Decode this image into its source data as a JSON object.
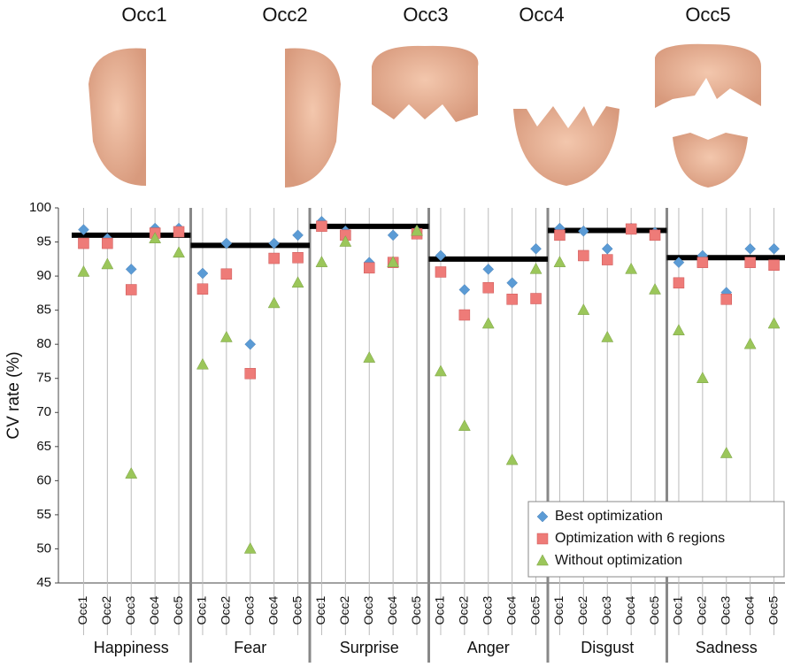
{
  "chart_data": {
    "type": "scatter",
    "y_label": "CV rate (%)",
    "occlusion_labels": [
      "Occ1",
      "Occ2",
      "Occ3",
      "Occ4",
      "Occ5"
    ],
    "groups": [
      "Happiness",
      "Fear",
      "Surprise",
      "Anger",
      "Disgust",
      "Sadness"
    ],
    "categories": [
      "Occ1",
      "Occ2",
      "Occ3",
      "Occ4",
      "Occ5",
      "Occ1",
      "Occ2",
      "Occ3",
      "Occ4",
      "Occ5",
      "Occ1",
      "Occ2",
      "Occ3",
      "Occ4",
      "Occ5",
      "Occ1",
      "Occ2",
      "Occ3",
      "Occ4",
      "Occ5",
      "Occ1",
      "Occ2",
      "Occ3",
      "Occ4",
      "Occ5",
      "Occ1",
      "Occ2",
      "Occ3",
      "Occ4",
      "Occ5"
    ],
    "series": [
      {
        "name": "Best optimization",
        "color": "#5b9bd5",
        "marker": "diamond",
        "values": [
          96.8,
          95.5,
          91,
          97,
          97,
          90.4,
          94.8,
          80,
          94.8,
          96,
          98,
          96.6,
          92,
          96,
          96.6,
          93,
          88,
          91,
          89,
          94,
          97,
          96.6,
          94,
          97,
          96.4,
          92,
          93,
          87.6,
          94,
          94
        ]
      },
      {
        "name": "Optimization with 6 regions",
        "color": "#ee7b78",
        "marker": "square",
        "values": [
          94.8,
          94.8,
          88,
          96.3,
          96.5,
          88.1,
          90.3,
          75.7,
          92.6,
          92.7,
          97.3,
          96,
          91.2,
          92,
          96.2,
          90.6,
          84.3,
          88.3,
          86.6,
          86.7,
          96,
          93,
          92.4,
          96.9,
          96,
          89,
          92,
          86.6,
          92,
          91.6
        ]
      },
      {
        "name": "Without optimization",
        "color": "#9bc65a",
        "marker": "triangle",
        "values": [
          90.6,
          91.7,
          61,
          95.5,
          93.4,
          77,
          81,
          50,
          86,
          89,
          92,
          95,
          78,
          92,
          96.6,
          76,
          68,
          83,
          63,
          91,
          92,
          85,
          81,
          91,
          88,
          82,
          75,
          64,
          80,
          83
        ]
      }
    ],
    "baseline": [
      96,
      94.5,
      97.3,
      92.5,
      96.7,
      92.7
    ],
    "ylim": [
      45,
      100
    ],
    "yticks": [
      45,
      50,
      55,
      60,
      65,
      70,
      75,
      80,
      85,
      90,
      95,
      100
    ],
    "grid": false,
    "legend": "lower-right"
  }
}
